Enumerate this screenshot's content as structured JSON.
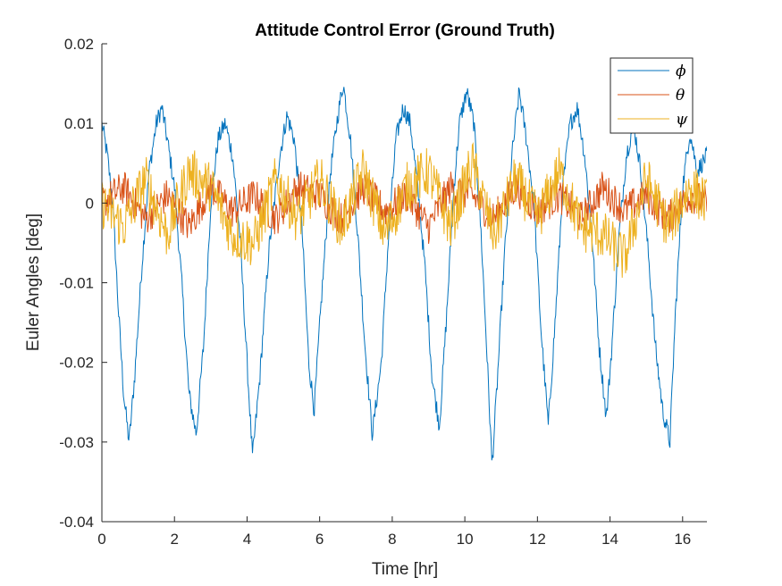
{
  "chart_data": {
    "type": "line",
    "title": "Attitude Control Error (Ground Truth)",
    "xlabel": "Time [hr]",
    "ylabel": "Euler Angles [deg]",
    "xlim": [
      0,
      16.67
    ],
    "ylim": [
      -0.04,
      0.02
    ],
    "xticks": [
      "0",
      "2",
      "4",
      "6",
      "8",
      "10",
      "12",
      "14",
      "16"
    ],
    "xtick_values": [
      0,
      2,
      4,
      6,
      8,
      10,
      12,
      14,
      16
    ],
    "yticks": [
      "0.02",
      "0.01",
      "0",
      "-0.01",
      "-0.02",
      "-0.03",
      "-0.04"
    ],
    "ytick_values": [
      0.02,
      0.01,
      0,
      -0.01,
      -0.02,
      -0.03,
      -0.04
    ],
    "grid": false,
    "legend_position": "top-right",
    "colors": [
      "#0072BD",
      "#D95319",
      "#EDB120"
    ],
    "series": [
      {
        "name": "ϕ",
        "color": "#0072BD",
        "x": [
          0,
          0.15,
          0.3,
          0.45,
          0.6,
          0.75,
          0.9,
          1.1,
          1.3,
          1.5,
          1.65,
          1.8,
          2.0,
          2.2,
          2.4,
          2.6,
          2.8,
          3.0,
          3.2,
          3.4,
          3.6,
          3.8,
          4.0,
          4.15,
          4.35,
          4.6,
          4.9,
          5.1,
          5.3,
          5.5,
          5.7,
          5.85,
          6.05,
          6.3,
          6.5,
          6.65,
          6.85,
          7.05,
          7.25,
          7.45,
          7.7,
          7.9,
          8.1,
          8.3,
          8.5,
          8.7,
          8.9,
          9.1,
          9.3,
          9.5,
          9.7,
          9.85,
          10.05,
          10.25,
          10.45,
          10.6,
          10.75,
          10.9,
          11.1,
          11.3,
          11.5,
          11.7,
          11.9,
          12.1,
          12.3,
          12.5,
          12.7,
          12.9,
          13.1,
          13.3,
          13.5,
          13.7,
          13.9,
          14.05,
          14.25,
          14.45,
          14.65,
          14.85,
          15.05,
          15.25,
          15.45,
          15.65,
          15.8,
          16.0,
          16.2,
          16.4,
          16.67
        ],
        "values": [
          0.01,
          0.006,
          0.0,
          -0.013,
          -0.024,
          -0.03,
          -0.022,
          -0.008,
          0.004,
          0.01,
          0.012,
          0.008,
          0.002,
          -0.01,
          -0.024,
          -0.029,
          -0.018,
          0.0,
          0.008,
          0.01,
          0.006,
          -0.004,
          -0.02,
          -0.032,
          -0.022,
          -0.006,
          0.006,
          0.011,
          0.008,
          -0.002,
          -0.02,
          -0.026,
          -0.012,
          0.004,
          0.011,
          0.015,
          0.008,
          -0.004,
          -0.018,
          -0.029,
          -0.02,
          -0.004,
          0.008,
          0.012,
          0.01,
          0.002,
          -0.008,
          -0.022,
          -0.028,
          -0.014,
          0.002,
          0.01,
          0.014,
          0.01,
          -0.004,
          -0.018,
          -0.033,
          -0.022,
          -0.006,
          0.006,
          0.014,
          0.008,
          0.0,
          -0.016,
          -0.028,
          -0.014,
          0.002,
          0.01,
          0.012,
          0.006,
          -0.004,
          -0.018,
          -0.027,
          -0.018,
          -0.004,
          0.006,
          0.01,
          0.004,
          -0.006,
          -0.018,
          -0.026,
          -0.03,
          -0.014,
          0.002,
          0.009,
          0.004,
          0.006
        ]
      },
      {
        "name": "θ",
        "color": "#D95319",
        "x": [
          0,
          0.6,
          1.2,
          1.8,
          2.4,
          3.0,
          3.6,
          4.2,
          4.8,
          5.4,
          6.0,
          6.6,
          7.2,
          7.8,
          8.4,
          9.0,
          9.6,
          10.2,
          10.8,
          11.4,
          12.0,
          12.6,
          13.2,
          13.8,
          14.4,
          15.0,
          15.6,
          16.2,
          16.67
        ],
        "values": [
          0.0,
          0.002,
          -0.002,
          0.001,
          -0.003,
          0.002,
          -0.001,
          0.001,
          -0.002,
          0.002,
          0.001,
          -0.002,
          0.002,
          -0.001,
          0.001,
          -0.003,
          0.002,
          0.001,
          -0.002,
          0.002,
          -0.001,
          0.001,
          -0.002,
          0.002,
          -0.001,
          0.001,
          -0.002,
          0.001,
          0.0
        ]
      },
      {
        "name": "ψ",
        "color": "#EDB120",
        "x": [
          0,
          0.6,
          1.2,
          1.8,
          2.4,
          3.0,
          3.6,
          4.2,
          4.8,
          5.4,
          6.0,
          6.6,
          7.2,
          7.8,
          8.4,
          9.0,
          9.6,
          10.2,
          10.8,
          11.4,
          12.0,
          12.6,
          13.2,
          13.8,
          14.4,
          15.0,
          15.6,
          16.2,
          16.67
        ],
        "values": [
          0.0,
          -0.003,
          0.003,
          -0.004,
          0.004,
          0.002,
          -0.004,
          -0.005,
          0.003,
          -0.002,
          0.003,
          -0.003,
          0.004,
          -0.004,
          0.002,
          0.004,
          -0.003,
          0.005,
          -0.004,
          0.003,
          -0.002,
          0.004,
          -0.003,
          -0.004,
          -0.007,
          0.003,
          -0.003,
          0.002,
          0.0
        ]
      }
    ]
  }
}
